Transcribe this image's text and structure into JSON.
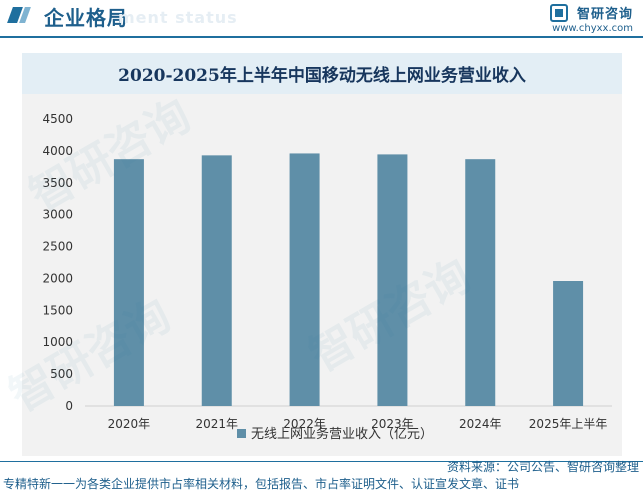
{
  "header": {
    "title": "企业格局",
    "ghost_text": "ment status"
  },
  "brand": {
    "name": "智研咨询",
    "url": "www.chyxx.com"
  },
  "watermark_text": "智研咨询",
  "chart_data": {
    "type": "bar",
    "title": "2020-2025年上半年中国移动无线上网业务营业收入",
    "categories": [
      "2020年",
      "2021年",
      "2022年",
      "2023年",
      "2024年",
      "2025年上半年"
    ],
    "series": [
      {
        "name": "无线上网业务营业收入（亿元）",
        "values": [
          3870,
          3930,
          3960,
          3945,
          3870,
          1960
        ]
      }
    ],
    "ylim": [
      0,
      4500
    ],
    "yticks": [
      0,
      500,
      1000,
      1500,
      2000,
      2500,
      3000,
      3500,
      4000,
      4500
    ],
    "bar_color": "#5f8fa8",
    "legend_position": "bottom",
    "grid": false
  },
  "source": "资料来源：公司公告、智研咨询整理",
  "footer": "专精特新一一为各类企业提供市占率相关材料，包括报告、市占率证明文件、认证宣发文章、证书"
}
